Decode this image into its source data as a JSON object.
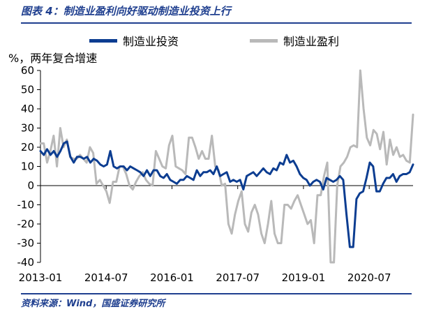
{
  "figure": {
    "title": "图表 4：制造业盈利向好驱动制造业投资上行",
    "source": "资料来源：Wind，国盛证券研究所"
  },
  "colors": {
    "header": "#1f3f8f",
    "investment": "#0c3d91",
    "profit": "#b9b9b9"
  },
  "chart_data": {
    "type": "line",
    "ylabel": "%，两年复合增速",
    "ylim": [
      -40,
      60
    ],
    "yticks": [
      60,
      50,
      40,
      30,
      20,
      10,
      0,
      -10,
      -20,
      -30,
      -40
    ],
    "xlim": [
      0,
      102
    ],
    "xtick_indices": [
      0,
      18,
      36,
      54,
      72,
      90
    ],
    "xtick_labels": [
      "2013-01",
      "2014-07",
      "2016-01",
      "2017-07",
      "2019-01",
      "2020-07"
    ],
    "legend_position": "top",
    "grid": false,
    "series": [
      {
        "name": "制造业投资",
        "color": "#0c3d91",
        "values": [
          18,
          16,
          19,
          16,
          18,
          15,
          18,
          22,
          23,
          15,
          12,
          15,
          15,
          14,
          15,
          12,
          14,
          13,
          11,
          10,
          11,
          18,
          10,
          9,
          10,
          10,
          8,
          10,
          9,
          8,
          7,
          5,
          8,
          5,
          8,
          8,
          5,
          4,
          6,
          3,
          2,
          1,
          3,
          3,
          5,
          4,
          3,
          8,
          5,
          7,
          7,
          8,
          6,
          10,
          5,
          6,
          7,
          2,
          3,
          2,
          3,
          -2,
          5,
          6,
          7,
          5,
          7,
          9,
          7,
          6,
          9,
          8,
          12,
          11,
          16,
          12,
          13,
          10,
          6,
          4,
          3,
          0,
          2,
          3,
          2,
          -2,
          4,
          3,
          2,
          3,
          5,
          3,
          -15,
          -32,
          -32,
          -7,
          -4,
          -3,
          4,
          12,
          10,
          -3,
          -3,
          1,
          4,
          4,
          6,
          2,
          5,
          6,
          6,
          7,
          11
        ]
      },
      {
        "name": "制造业盈利",
        "color": "#b9b9b9",
        "values": [
          22,
          22,
          12,
          18,
          26,
          10,
          30,
          20,
          24,
          15,
          14,
          14,
          16,
          14,
          12,
          20,
          17,
          1,
          3,
          0,
          -3,
          -9,
          2,
          2,
          10,
          10,
          6,
          0,
          -2,
          2,
          5,
          7,
          3,
          1,
          0,
          18,
          14,
          10,
          9,
          21,
          26,
          10,
          9,
          8,
          6,
          25,
          25,
          20,
          14,
          18,
          14,
          14,
          26,
          10,
          8,
          0,
          1,
          -20,
          -25,
          -15,
          -8,
          -3,
          -20,
          -24,
          -14,
          -10,
          -15,
          -25,
          -30,
          -20,
          -8,
          -25,
          -30,
          -30,
          -10,
          -10,
          -12,
          -8,
          -5,
          -10,
          -15,
          -20,
          -18,
          -30,
          -5,
          -5,
          5,
          12,
          -40,
          -40,
          0,
          10,
          12,
          15,
          20,
          21,
          20,
          60,
          40,
          25,
          21,
          29,
          27,
          19,
          28,
          11,
          24,
          16,
          20,
          15,
          16,
          13,
          12,
          37
        ]
      }
    ]
  }
}
